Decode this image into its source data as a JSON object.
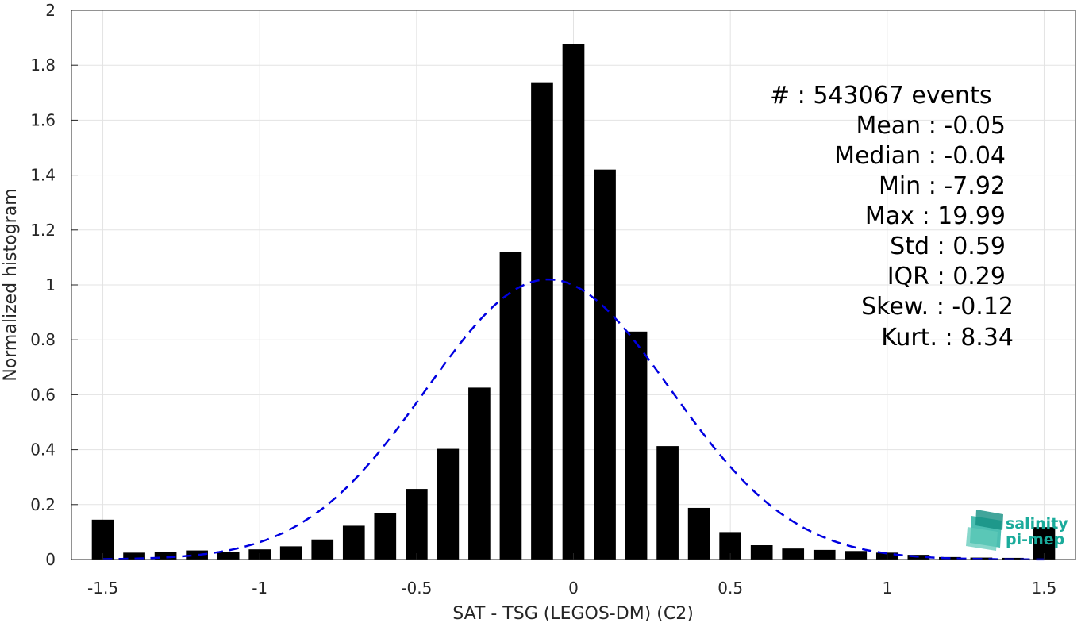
{
  "chart_data": {
    "type": "bar",
    "xlabel": "SAT - TSG (LEGOS-DM) (C2)",
    "ylabel": "Normalized histogram",
    "xlim": [
      -1.6,
      1.6
    ],
    "ylim": [
      0,
      2
    ],
    "xticks": [
      -1.5,
      -1,
      -0.5,
      0,
      0.5,
      1,
      1.5
    ],
    "xtick_labels": [
      "-1.5",
      "-1",
      "-0.5",
      "0",
      "0.5",
      "1",
      "1.5"
    ],
    "yticks": [
      0,
      0.2,
      0.4,
      0.6,
      0.8,
      1,
      1.2,
      1.4,
      1.6,
      1.8,
      2
    ],
    "ytick_labels": [
      "0",
      "0.2",
      "0.4",
      "0.6",
      "0.8",
      "1",
      "1.2",
      "1.4",
      "1.6",
      "1.8",
      "2"
    ],
    "grid": true,
    "bar_color": "#000000",
    "bins": [
      -1.5,
      -1.4,
      -1.3,
      -1.2,
      -1.1,
      -1.0,
      -0.9,
      -0.8,
      -0.7,
      -0.6,
      -0.5,
      -0.4,
      -0.3,
      -0.2,
      -0.1,
      0.0,
      0.1,
      0.2,
      0.3,
      0.4,
      0.5,
      0.6,
      0.7,
      0.8,
      0.9,
      1.0,
      1.1,
      1.2,
      1.3,
      1.4,
      1.5
    ],
    "values": [
      0.145,
      0.025,
      0.027,
      0.033,
      0.027,
      0.037,
      0.048,
      0.073,
      0.123,
      0.168,
      0.257,
      0.403,
      0.626,
      1.12,
      1.738,
      1.876,
      1.42,
      0.83,
      0.413,
      0.188,
      0.1,
      0.052,
      0.04,
      0.035,
      0.031,
      0.025,
      0.017,
      0.009,
      0.007,
      0.006,
      0.118
    ],
    "fit_curve": {
      "type": "gaussian",
      "mean": -0.08,
      "std": 0.39,
      "peak": 1.02,
      "color": "#0000e0",
      "style": "dashed"
    },
    "stats": [
      "#  : 543067 events",
      "Mean : -0.05",
      "Median : -0.04",
      "Min : -7.92",
      "Max : 19.99",
      "Std : 0.59",
      "IQR : 0.29",
      "Skew. : -0.12",
      "Kurt. : 8.34"
    ]
  },
  "logo": {
    "line1": "salinity",
    "line2": "pi-mep",
    "color": "#1aab9b"
  }
}
